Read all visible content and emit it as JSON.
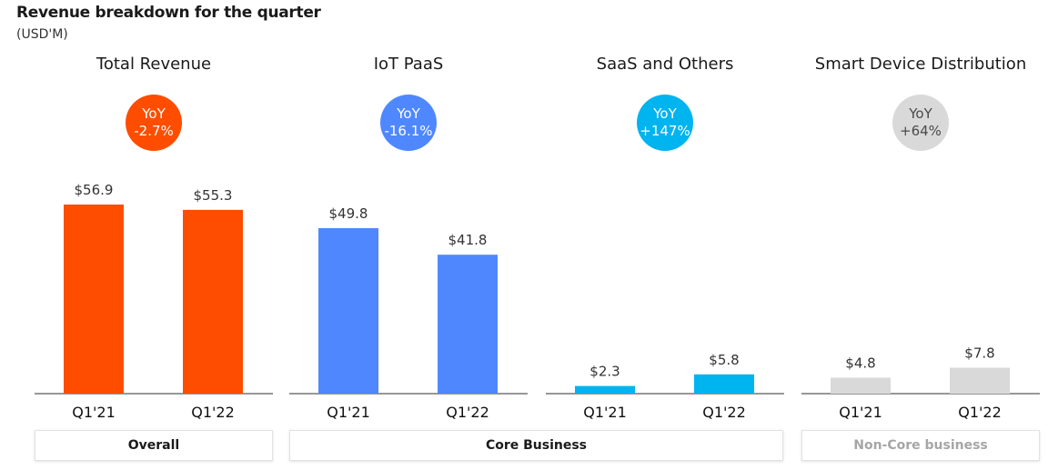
{
  "title": "Revenue breakdown for the quarter",
  "subtitle": "(USD'M)",
  "chart_data": {
    "type": "bar",
    "unit": "USD'M",
    "categories": [
      "Q1'21",
      "Q1'22"
    ],
    "groups": [
      {
        "name": "Total Revenue",
        "color": "#ff4d00",
        "yoy_line1": "YoY",
        "yoy_line2": "-2.7%",
        "yoy_color": "#ff4d00",
        "values": [
          56.9,
          55.3
        ],
        "value_labels": [
          "$56.9",
          "$55.3"
        ]
      },
      {
        "name": "IoT PaaS",
        "color": "#4f87ff",
        "yoy_line1": "YoY",
        "yoy_line2": "-16.1%",
        "yoy_color": "#4f87ff",
        "values": [
          49.8,
          41.8
        ],
        "value_labels": [
          "$49.8",
          "$41.8"
        ]
      },
      {
        "name": "SaaS and Others",
        "color": "#00b4f0",
        "yoy_line1": "YoY",
        "yoy_line2": "+147%",
        "yoy_color": "#00b4f0",
        "values": [
          2.3,
          5.8
        ],
        "value_labels": [
          "$2.3",
          "$5.8"
        ]
      },
      {
        "name": "Smart Device Distribution",
        "color": "#d9d9d9",
        "yoy_line1": "YoY",
        "yoy_line2": "+64%",
        "yoy_color": "#d9d9d9",
        "values": [
          4.8,
          7.8
        ],
        "value_labels": [
          "$4.8",
          "$7.8"
        ]
      }
    ],
    "ylim": [
      0,
      56.9
    ]
  },
  "footer": {
    "overall": "Overall",
    "core": "Core Business",
    "noncore": "Non-Core business"
  }
}
